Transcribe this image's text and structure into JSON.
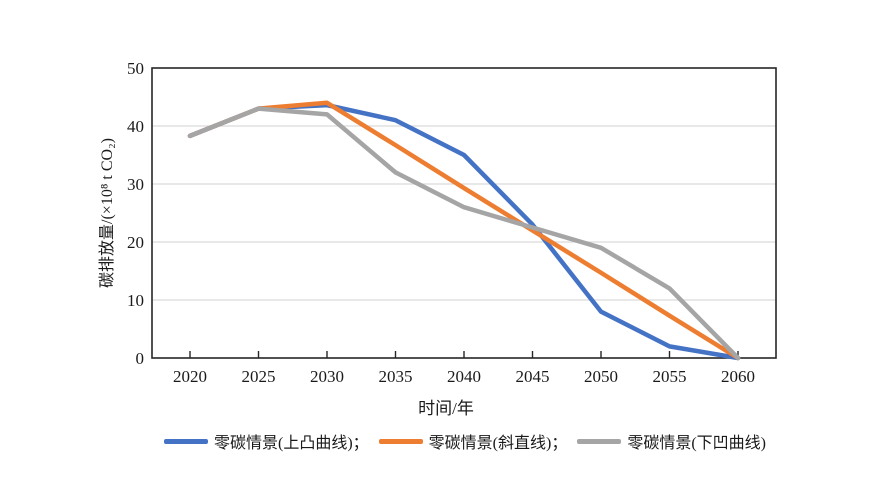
{
  "chart_data": {
    "type": "line",
    "title": "",
    "xlabel": "时间/年",
    "ylabel": "碳排放量/(×10⁸ t CO₂)",
    "x": [
      2020,
      2025,
      2030,
      2035,
      2040,
      2045,
      2050,
      2055,
      2060
    ],
    "yticks": [
      0,
      10,
      20,
      30,
      40,
      50
    ],
    "ylim": [
      0,
      50
    ],
    "grid": "horizontal-only",
    "legend_position": "bottom-center",
    "series": [
      {
        "name": "零碳情景(上凸曲线)",
        "legend_label": "零碳情景(上凸曲线)；",
        "color": "#4472C4",
        "values": [
          38.3,
          43,
          43.6,
          41,
          35,
          23,
          8,
          2,
          0
        ]
      },
      {
        "name": "零碳情景(斜直线)",
        "legend_label": "零碳情景(斜直线)；",
        "color": "#ED7D31",
        "values": [
          38.3,
          43,
          44,
          36.7,
          29.3,
          22,
          14.7,
          7.3,
          0
        ]
      },
      {
        "name": "零碳情景(下凹曲线)",
        "legend_label": "零碳情景(下凹曲线)",
        "color": "#A5A5A5",
        "values": [
          38.3,
          43,
          42,
          32,
          26,
          22.5,
          19,
          12,
          0
        ]
      }
    ]
  },
  "colors": {
    "axis_frame": "#262626",
    "gridline": "#d9d9d9",
    "text": "#1a1a1a",
    "background": "#ffffff"
  }
}
